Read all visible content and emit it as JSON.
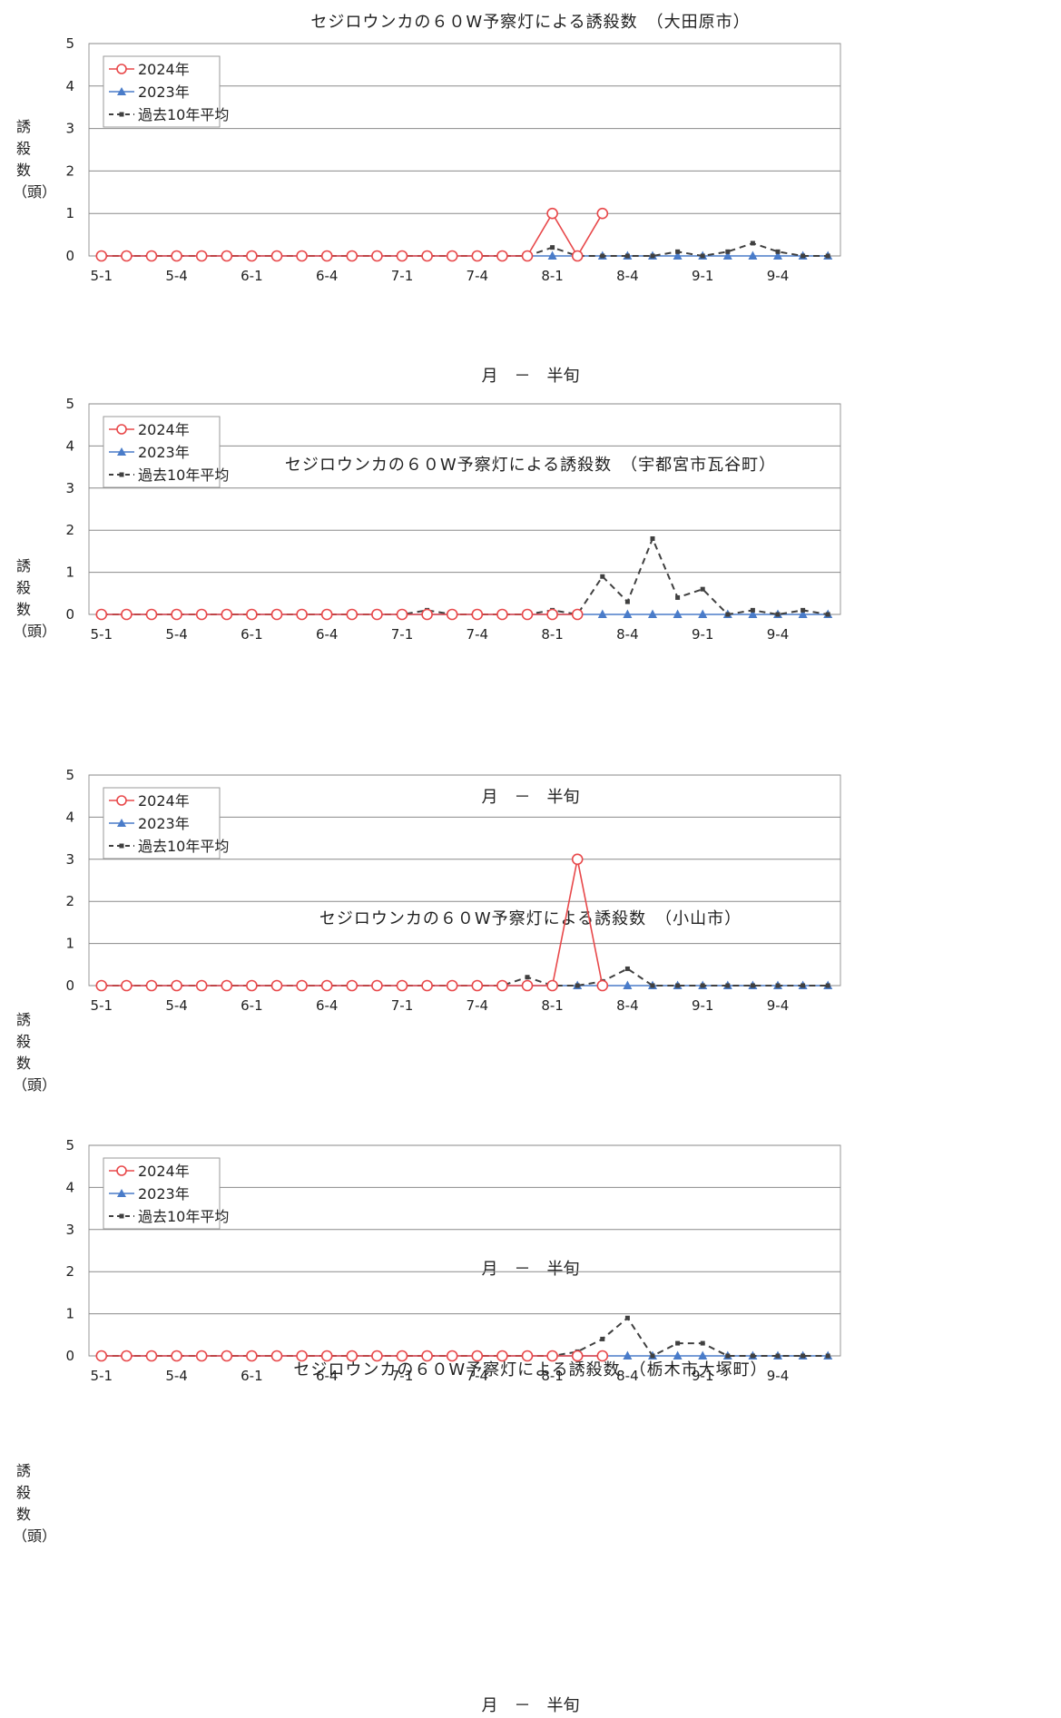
{
  "chart_data": [
    {
      "type": "line",
      "title": "セジロウンカの６０W予察灯による誘殺数　（大田原市）",
      "ylabel": "誘殺数（頭）",
      "xlabel": "月　－　半旬",
      "ylim": [
        0,
        5
      ],
      "yticks": [
        0,
        1,
        2,
        3,
        4,
        5
      ],
      "categories": [
        "5-1",
        "5-2",
        "5-3",
        "5-4",
        "5-5",
        "5-6",
        "6-1",
        "6-2",
        "6-3",
        "6-4",
        "6-5",
        "6-6",
        "7-1",
        "7-2",
        "7-3",
        "7-4",
        "7-5",
        "7-6",
        "8-1",
        "8-2",
        "8-3",
        "8-4",
        "8-5",
        "8-6",
        "9-1",
        "9-2",
        "9-3",
        "9-4",
        "9-5",
        "9-6"
      ],
      "tick_labels": [
        "5-1",
        "5-4",
        "6-1",
        "6-4",
        "7-1",
        "7-4",
        "8-1",
        "8-4",
        "9-1",
        "9-4"
      ],
      "legend_position": "top-left",
      "grid": true,
      "series": [
        {
          "name": "2024年",
          "color": "#e8484a",
          "marker": "circle",
          "style": "solid",
          "values": [
            0,
            0,
            0,
            0,
            0,
            0,
            0,
            0,
            0,
            0,
            0,
            0,
            0,
            0,
            0,
            0,
            0,
            0,
            1,
            0,
            1,
            null,
            null,
            null,
            null,
            null,
            null,
            null,
            null,
            null
          ]
        },
        {
          "name": "2023年",
          "color": "#4a7cc9",
          "marker": "triangle",
          "style": "solid",
          "values": [
            0,
            0,
            0,
            0,
            0,
            0,
            0,
            0,
            0,
            0,
            0,
            0,
            0,
            0,
            0,
            0,
            0,
            0,
            0,
            0,
            0,
            0,
            0,
            0,
            0,
            0,
            0,
            0,
            0,
            0
          ]
        },
        {
          "name": "過去10年平均",
          "color": "#404040",
          "marker": "square",
          "style": "dashed",
          "values": [
            0,
            0,
            0,
            0,
            0,
            0,
            0,
            0,
            0,
            0,
            0,
            0,
            0,
            0,
            0,
            0,
            0,
            0,
            0.2,
            0,
            0,
            0,
            0,
            0.1,
            0,
            0.1,
            0.3,
            0.1,
            0,
            0
          ]
        }
      ]
    },
    {
      "type": "line",
      "title": "セジロウンカの６０W予察灯による誘殺数　（宇都宮市瓦谷町）",
      "ylabel": "誘殺数（頭）",
      "xlabel": "月　－　半旬",
      "ylim": [
        0,
        5
      ],
      "yticks": [
        0,
        1,
        2,
        3,
        4,
        5
      ],
      "categories": [
        "5-1",
        "5-2",
        "5-3",
        "5-4",
        "5-5",
        "5-6",
        "6-1",
        "6-2",
        "6-3",
        "6-4",
        "6-5",
        "6-6",
        "7-1",
        "7-2",
        "7-3",
        "7-4",
        "7-5",
        "7-6",
        "8-1",
        "8-2",
        "8-3",
        "8-4",
        "8-5",
        "8-6",
        "9-1",
        "9-2",
        "9-3",
        "9-4",
        "9-5",
        "9-6"
      ],
      "tick_labels": [
        "5-1",
        "5-4",
        "6-1",
        "6-4",
        "7-1",
        "7-4",
        "8-1",
        "8-4",
        "9-1",
        "9-4"
      ],
      "legend_position": "top-left",
      "grid": true,
      "series": [
        {
          "name": "2024年",
          "color": "#e8484a",
          "marker": "circle",
          "style": "solid",
          "values": [
            0,
            0,
            0,
            0,
            0,
            0,
            0,
            0,
            0,
            0,
            0,
            0,
            0,
            0,
            0,
            0,
            0,
            0,
            0,
            0,
            null,
            null,
            null,
            null,
            null,
            null,
            null,
            null,
            null,
            null
          ]
        },
        {
          "name": "2023年",
          "color": "#4a7cc9",
          "marker": "triangle",
          "style": "solid",
          "values": [
            0,
            0,
            0,
            0,
            0,
            0,
            0,
            0,
            0,
            0,
            0,
            0,
            0,
            0,
            0,
            0,
            0,
            0,
            0,
            0,
            0,
            0,
            0,
            0,
            0,
            0,
            0,
            0,
            0,
            0
          ]
        },
        {
          "name": "過去10年平均",
          "color": "#404040",
          "marker": "square",
          "style": "dashed",
          "values": [
            0,
            0,
            0,
            0,
            0,
            0,
            0,
            0,
            0,
            0,
            0,
            0,
            0,
            0.1,
            0,
            0,
            0,
            0,
            0.1,
            0,
            0.9,
            0.3,
            1.8,
            0.4,
            0.6,
            0,
            0.1,
            0,
            0.1,
            0
          ]
        }
      ]
    },
    {
      "type": "line",
      "title": "セジロウンカの６０W予察灯による誘殺数　（小山市）",
      "ylabel": "誘殺数（頭）",
      "xlabel": "月　－　半旬",
      "ylim": [
        0,
        5
      ],
      "yticks": [
        0,
        1,
        2,
        3,
        4,
        5
      ],
      "categories": [
        "5-1",
        "5-2",
        "5-3",
        "5-4",
        "5-5",
        "5-6",
        "6-1",
        "6-2",
        "6-3",
        "6-4",
        "6-5",
        "6-6",
        "7-1",
        "7-2",
        "7-3",
        "7-4",
        "7-5",
        "7-6",
        "8-1",
        "8-2",
        "8-3",
        "8-4",
        "8-5",
        "8-6",
        "9-1",
        "9-2",
        "9-3",
        "9-4",
        "9-5",
        "9-6"
      ],
      "tick_labels": [
        "5-1",
        "5-4",
        "6-1",
        "6-4",
        "7-1",
        "7-4",
        "8-1",
        "8-4",
        "9-1",
        "9-4"
      ],
      "legend_position": "top-left",
      "grid": true,
      "series": [
        {
          "name": "2024年",
          "color": "#e8484a",
          "marker": "circle",
          "style": "solid",
          "values": [
            0,
            0,
            0,
            0,
            0,
            0,
            0,
            0,
            0,
            0,
            0,
            0,
            0,
            0,
            0,
            0,
            0,
            0,
            0,
            3,
            0,
            null,
            null,
            null,
            null,
            null,
            null,
            null,
            null,
            null
          ]
        },
        {
          "name": "2023年",
          "color": "#4a7cc9",
          "marker": "triangle",
          "style": "solid",
          "values": [
            0,
            0,
            0,
            0,
            0,
            0,
            0,
            0,
            0,
            0,
            0,
            0,
            0,
            0,
            0,
            0,
            0,
            0,
            0,
            0,
            0,
            0,
            0,
            0,
            0,
            0,
            0,
            0,
            0,
            0
          ]
        },
        {
          "name": "過去10年平均",
          "color": "#404040",
          "marker": "square",
          "style": "dashed",
          "values": [
            0,
            0,
            0,
            0,
            0,
            0,
            0,
            0,
            0,
            0,
            0,
            0,
            0,
            0,
            0,
            0,
            0,
            0.2,
            0,
            0,
            0.1,
            0.4,
            0,
            0,
            0,
            0,
            0,
            0,
            0,
            0
          ]
        }
      ]
    },
    {
      "type": "line",
      "title": "セジロウンカの６０W予察灯による誘殺数　（栃木市大塚町）",
      "ylabel": "誘殺数（頭）",
      "xlabel": "月　－　半旬",
      "ylim": [
        0,
        5
      ],
      "yticks": [
        0,
        1,
        2,
        3,
        4,
        5
      ],
      "categories": [
        "5-1",
        "5-2",
        "5-3",
        "5-4",
        "5-5",
        "5-6",
        "6-1",
        "6-2",
        "6-3",
        "6-4",
        "6-5",
        "6-6",
        "7-1",
        "7-2",
        "7-3",
        "7-4",
        "7-5",
        "7-6",
        "8-1",
        "8-2",
        "8-3",
        "8-4",
        "8-5",
        "8-6",
        "9-1",
        "9-2",
        "9-3",
        "9-4",
        "9-5",
        "9-6"
      ],
      "tick_labels": [
        "5-1",
        "5-4",
        "6-1",
        "6-4",
        "7-1",
        "7-4",
        "8-1",
        "8-4",
        "9-1",
        "9-4"
      ],
      "legend_position": "top-left",
      "grid": true,
      "series": [
        {
          "name": "2024年",
          "color": "#e8484a",
          "marker": "circle",
          "style": "solid",
          "values": [
            0,
            0,
            0,
            0,
            0,
            0,
            0,
            0,
            0,
            0,
            0,
            0,
            0,
            0,
            0,
            0,
            0,
            0,
            0,
            0,
            0,
            null,
            null,
            null,
            null,
            null,
            null,
            null,
            null,
            null
          ]
        },
        {
          "name": "2023年",
          "color": "#4a7cc9",
          "marker": "triangle",
          "style": "solid",
          "values": [
            0,
            0,
            0,
            0,
            0,
            0,
            0,
            0,
            0,
            0,
            0,
            0,
            0,
            0,
            0,
            0,
            0,
            0,
            0,
            0,
            0,
            0,
            0,
            0,
            0,
            0,
            0,
            0,
            0,
            0
          ]
        },
        {
          "name": "過去10年平均",
          "color": "#404040",
          "marker": "square",
          "style": "dashed",
          "values": [
            0,
            0,
            0,
            0,
            0,
            0,
            0,
            0,
            0,
            0,
            0,
            0,
            0,
            0,
            0,
            0,
            0,
            0,
            0,
            0.1,
            0.4,
            0.9,
            0,
            0.3,
            0.3,
            0,
            0,
            0,
            0,
            0
          ]
        }
      ]
    }
  ]
}
